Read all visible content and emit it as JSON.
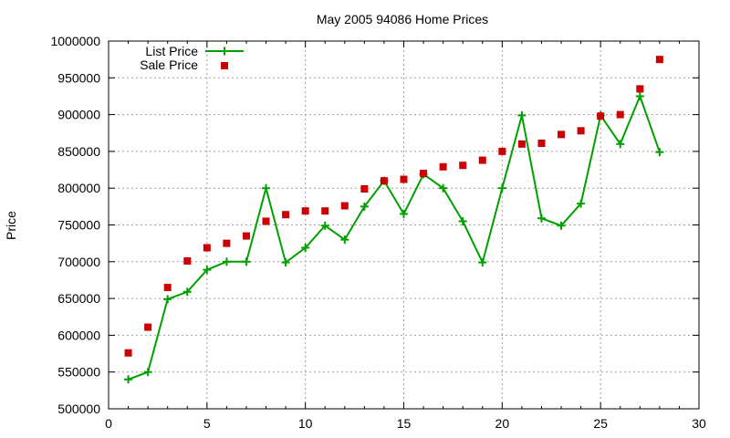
{
  "chart_data": {
    "type": "line",
    "title": "May 2005 94086 Home Prices",
    "xlabel": "",
    "ylabel": "Price",
    "xlim": [
      0,
      30
    ],
    "ylim": [
      500000,
      1000000
    ],
    "x_ticks": [
      0,
      5,
      10,
      15,
      20,
      25,
      30
    ],
    "y_ticks": [
      500000,
      550000,
      600000,
      650000,
      700000,
      750000,
      800000,
      850000,
      900000,
      950000,
      1000000
    ],
    "grid": true,
    "legend_position": "top-left",
    "series": [
      {
        "name": "List Price",
        "style": "line-with-plus-markers",
        "color": "#00a000",
        "x": [
          1,
          2,
          3,
          4,
          5,
          6,
          7,
          8,
          9,
          10,
          11,
          12,
          13,
          14,
          15,
          16,
          17,
          18,
          19,
          20,
          21,
          22,
          23,
          24,
          25,
          26,
          27,
          28
        ],
        "y": [
          540000,
          550000,
          649000,
          659000,
          689000,
          700000,
          700000,
          800000,
          699000,
          719000,
          749000,
          730000,
          775000,
          810000,
          765000,
          819000,
          800000,
          755000,
          699000,
          800000,
          899000,
          759000,
          749000,
          779000,
          899000,
          860000,
          925000,
          849000
        ]
      },
      {
        "name": "Sale Price",
        "style": "square-markers",
        "color": "#cc0000",
        "x": [
          1,
          2,
          3,
          4,
          5,
          6,
          7,
          8,
          9,
          10,
          11,
          12,
          13,
          14,
          15,
          16,
          17,
          18,
          19,
          20,
          21,
          22,
          23,
          24,
          25,
          26,
          27,
          28
        ],
        "y": [
          576000,
          611000,
          665000,
          701000,
          719000,
          725000,
          735000,
          755000,
          764000,
          769000,
          769000,
          776000,
          799000,
          810000,
          812000,
          820000,
          829000,
          831000,
          838000,
          850000,
          860000,
          861000,
          873000,
          878000,
          898000,
          900000,
          935000,
          975000
        ]
      }
    ]
  }
}
